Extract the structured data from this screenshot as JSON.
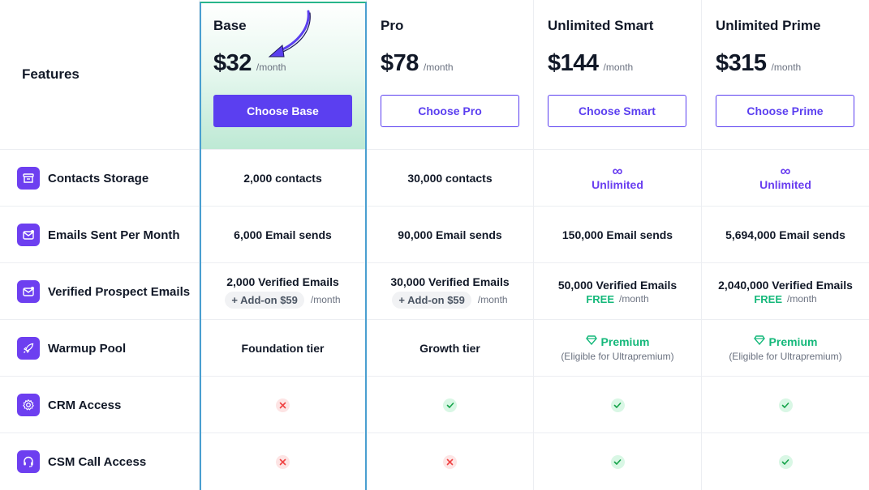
{
  "header": {
    "features_title": "Features",
    "plans": [
      {
        "name": "Base",
        "price": "$32",
        "period": "/month",
        "cta": "Choose Base"
      },
      {
        "name": "Pro",
        "price": "$78",
        "period": "/month",
        "cta": "Choose Pro"
      },
      {
        "name": "Unlimited Smart",
        "price": "$144",
        "period": "/month",
        "cta": "Choose Smart"
      },
      {
        "name": "Unlimited Prime",
        "price": "$315",
        "period": "/month",
        "cta": "Choose Prime"
      }
    ]
  },
  "rows": {
    "contacts": {
      "label": "Contacts Storage",
      "icon": "archive-box-icon",
      "base": "2,000 contacts",
      "pro": "30,000 contacts",
      "smart_symbol": "∞",
      "smart": "Unlimited",
      "prime_symbol": "∞",
      "prime": "Unlimited"
    },
    "emails": {
      "label": "Emails Sent Per Month",
      "icon": "mail-open-icon",
      "base": "6,000 Email sends",
      "pro": "90,000 Email sends",
      "smart": "150,000 Email sends",
      "prime": "5,694,000 Email sends"
    },
    "verified": {
      "label": "Verified Prospect Emails",
      "icon": "mail-check-icon",
      "base": "2,000 Verified Emails",
      "base_addon": "+ Add-on $59",
      "base_period": "/month",
      "pro": "30,000 Verified Emails",
      "pro_addon": "+ Add-on $59",
      "pro_period": "/month",
      "smart": "50,000 Verified Emails",
      "smart_free": "FREE",
      "smart_period": "/month",
      "prime": "2,040,000 Verified Emails",
      "prime_free": "FREE",
      "prime_period": "/month"
    },
    "warmup": {
      "label": "Warmup Pool",
      "icon": "rocket-icon",
      "base": "Foundation tier",
      "pro": "Growth tier",
      "smart": "Premium",
      "smart_note": "(Eligible for Ultrapremium)",
      "prime": "Premium",
      "prime_note": "(Eligible for Ultrapremium)"
    },
    "crm": {
      "label": "CRM Access",
      "icon": "gear-icon",
      "base": false,
      "pro": true,
      "smart": true,
      "prime": true
    },
    "csm": {
      "label": "CSM Call Access",
      "icon": "headset-icon",
      "base": false,
      "pro": false,
      "smart": true,
      "prime": true
    }
  },
  "colors": {
    "accent": "#5b3ff0",
    "success": "#14b87a",
    "danger": "#ef4444",
    "base_highlight_border": "#27b58a"
  }
}
